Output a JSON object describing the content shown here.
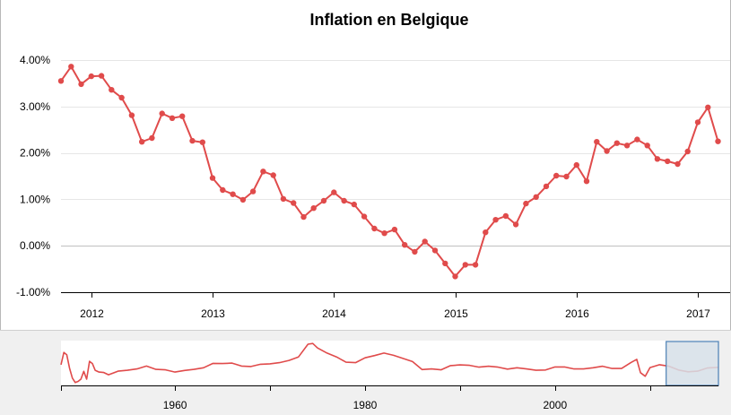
{
  "chart_data": {
    "type": "line",
    "title": "Inflation en Belgique",
    "xlabel": "",
    "ylabel": "",
    "ylim": [
      -1.0,
      4.0
    ],
    "y_tick_labels": [
      "4.00%",
      "3.00%",
      "2.00%",
      "1.00%",
      "0.00%",
      "-1.00%"
    ],
    "x_tick_labels": [
      "2012",
      "2013",
      "2014",
      "2015",
      "2016",
      "2017"
    ],
    "grid": true,
    "colors": {
      "line": "#e04b4b",
      "selection_fill": "#d6dfe8",
      "selection_border": "#4a7fb5",
      "navigator_bg": "#f0f0f0"
    },
    "series": [
      {
        "x": [
          "2011-10",
          "2011-11",
          "2011-12",
          "2012-01",
          "2012-02",
          "2012-03",
          "2012-04",
          "2012-05",
          "2012-06",
          "2012-07",
          "2012-08",
          "2012-09",
          "2012-10",
          "2012-11",
          "2012-12",
          "2013-01",
          "2013-02",
          "2013-03",
          "2013-04",
          "2013-05",
          "2013-06",
          "2013-07",
          "2013-08",
          "2013-09",
          "2013-10",
          "2013-11",
          "2013-12",
          "2014-01",
          "2014-02",
          "2014-03",
          "2014-04",
          "2014-05",
          "2014-06",
          "2014-07",
          "2014-08",
          "2014-09",
          "2014-10",
          "2014-11",
          "2014-12",
          "2015-01",
          "2015-02",
          "2015-03",
          "2015-04",
          "2015-05",
          "2015-06",
          "2015-07",
          "2015-08",
          "2015-09",
          "2015-10",
          "2015-11",
          "2015-12",
          "2016-01",
          "2016-02",
          "2016-03",
          "2016-04",
          "2016-05",
          "2016-06",
          "2016-07",
          "2016-08",
          "2016-09",
          "2016-10",
          "2016-11",
          "2016-12",
          "2017-01",
          "2017-02",
          "2017-03"
        ],
        "values": [
          3.55,
          3.86,
          3.48,
          3.65,
          3.66,
          3.36,
          3.19,
          2.81,
          2.24,
          2.32,
          2.85,
          2.75,
          2.79,
          2.26,
          2.23,
          1.46,
          1.2,
          1.11,
          0.99,
          1.17,
          1.6,
          1.52,
          1.01,
          0.92,
          0.62,
          0.81,
          0.97,
          1.15,
          0.97,
          0.89,
          0.63,
          0.37,
          0.27,
          0.35,
          0.02,
          -0.13,
          0.09,
          -0.1,
          -0.38,
          -0.66,
          -0.41,
          -0.41,
          0.29,
          0.56,
          0.64,
          0.46,
          0.91,
          1.05,
          1.28,
          1.51,
          1.49,
          1.74,
          1.39,
          2.24,
          2.04,
          2.21,
          2.16,
          2.29,
          2.16,
          1.87,
          1.82,
          1.76,
          2.03,
          2.66,
          2.98,
          2.25
        ]
      }
    ],
    "navigator": {
      "x_tick_labels": [
        "1960",
        "1980",
        "2000"
      ],
      "x_range": [
        1948,
        2017.2
      ],
      "selected_range": [
        2011.7,
        2017.2
      ],
      "series": {
        "x": [
          1948.0,
          1948.3,
          1948.6,
          1948.9,
          1949.2,
          1949.5,
          1949.8,
          1950.1,
          1950.4,
          1950.7,
          1951.0,
          1951.3,
          1951.6,
          1952.0,
          1952.5,
          1953,
          1954,
          1955,
          1956,
          1957,
          1958,
          1959,
          1960,
          1961,
          1962,
          1963,
          1964,
          1965,
          1966,
          1967,
          1968,
          1969,
          1970,
          1971,
          1972,
          1973,
          1974,
          1974.5,
          1975,
          1976,
          1977,
          1978,
          1979,
          1980,
          1981,
          1982,
          1983,
          1984,
          1985,
          1986,
          1987,
          1988,
          1989,
          1990,
          1991,
          1992,
          1993,
          1994,
          1995,
          1996,
          1997,
          1998,
          1999,
          2000,
          2001,
          2002,
          2003,
          2004,
          2005,
          2006,
          2007,
          2008,
          2008.6,
          2009,
          2009.5,
          2010,
          2011,
          2012,
          2013,
          2014,
          2015,
          2016,
          2017.2
        ],
        "values": [
          3.5,
          9.0,
          8.0,
          2.0,
          -2.5,
          -4.5,
          -4.0,
          -3.0,
          0.5,
          -3.0,
          5.0,
          4.0,
          1.0,
          0.2,
          0.0,
          -1.0,
          0.6,
          1.0,
          1.6,
          2.9,
          1.4,
          1.2,
          0.2,
          0.9,
          1.4,
          2.1,
          4.1,
          4.0,
          4.2,
          2.9,
          2.7,
          3.7,
          3.9,
          4.4,
          5.4,
          7.0,
          12.7,
          13.0,
          11.0,
          8.7,
          7.0,
          4.6,
          4.4,
          6.6,
          7.6,
          8.7,
          7.7,
          6.3,
          4.9,
          1.3,
          1.6,
          1.2,
          3.1,
          3.4,
          3.2,
          2.4,
          2.8,
          2.4,
          1.5,
          2.1,
          1.6,
          1.0,
          1.1,
          2.5,
          2.5,
          1.6,
          1.6,
          2.1,
          2.8,
          1.8,
          1.8,
          4.5,
          5.9,
          -0.1,
          -1.7,
          2.2,
          3.5,
          2.8,
          1.1,
          0.3,
          0.6,
          2.0,
          2.3
        ]
      }
    }
  }
}
